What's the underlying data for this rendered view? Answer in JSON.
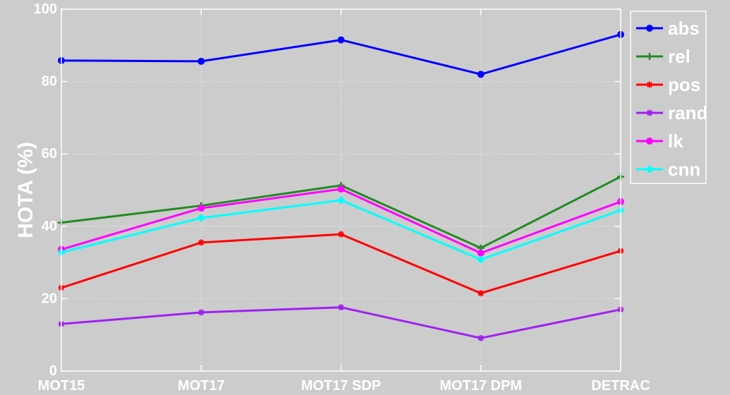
{
  "chart_data": {
    "type": "line",
    "categories": [
      "MOT15",
      "MOT17",
      "MOT17 SDP",
      "MOT17 DPM",
      "DETRAC"
    ],
    "ylabel": "HOTA (%)",
    "ylim": [
      0,
      100
    ],
    "yticks": [
      0,
      20,
      40,
      60,
      80,
      100
    ],
    "grid": true,
    "legend_position": "top-right",
    "series": [
      {
        "name": "abs",
        "color": "#0000ff",
        "marker": "circle",
        "values": [
          85.8,
          85.6,
          91.5,
          82.0,
          93.0
        ]
      },
      {
        "name": "rel",
        "color": "#228b22",
        "marker": "plus",
        "values": [
          41.0,
          45.7,
          51.3,
          34.0,
          53.7
        ]
      },
      {
        "name": "pos",
        "color": "#ff0000",
        "marker": "star",
        "values": [
          23.0,
          35.5,
          37.8,
          21.5,
          33.2
        ]
      },
      {
        "name": "rand",
        "color": "#a020f0",
        "marker": "star",
        "values": [
          13.0,
          16.2,
          17.6,
          9.1,
          17.0
        ]
      },
      {
        "name": "lk",
        "color": "#ff00ff",
        "marker": "circle",
        "values": [
          33.6,
          45.0,
          50.3,
          32.6,
          46.8
        ]
      },
      {
        "name": "cnn",
        "color": "#00ffff",
        "marker": "diamond",
        "values": [
          32.8,
          42.3,
          47.2,
          30.8,
          44.4
        ]
      }
    ]
  }
}
